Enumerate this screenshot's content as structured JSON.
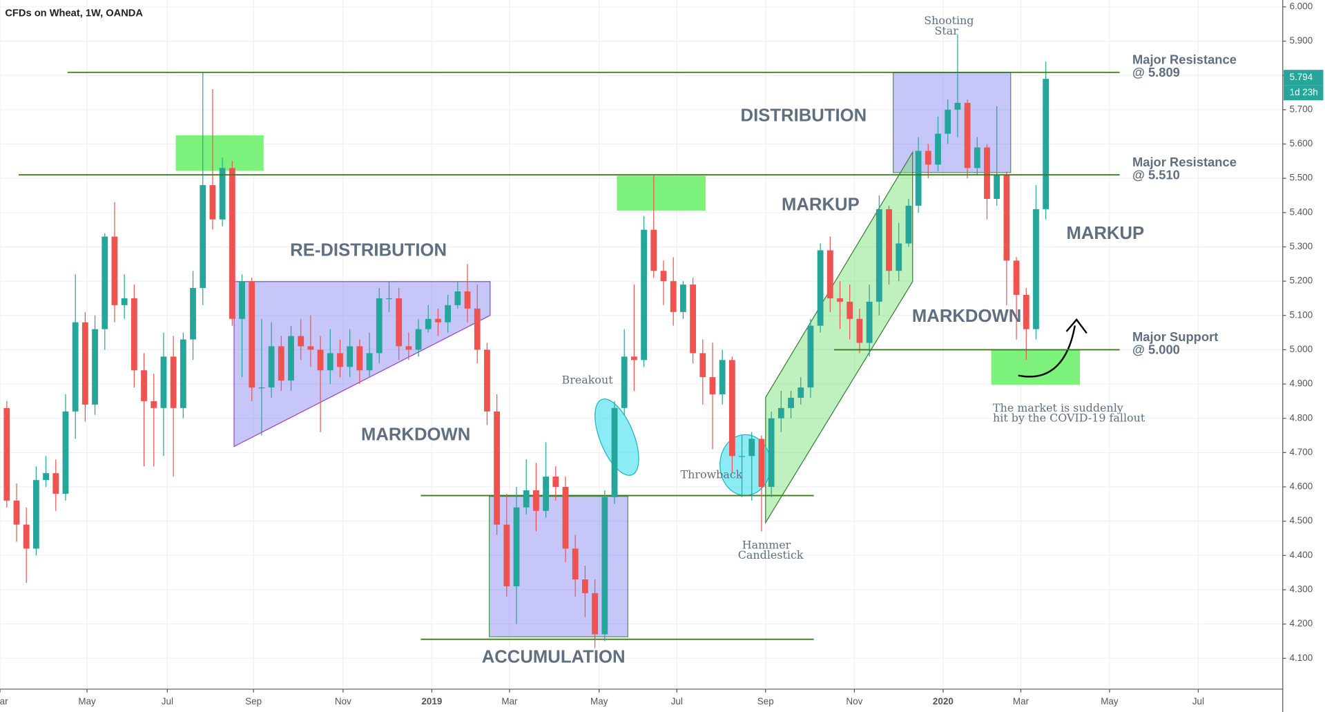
{
  "chart_data": {
    "type": "candlestick",
    "title": "CFDs on Wheat, 1W, OANDA",
    "up_color": "#26a69a",
    "down_color": "#ef5350",
    "grid": true,
    "ylim": [
      4.01,
      6.02
    ],
    "yticks": [
      {
        "value": 4.1,
        "label": "4.100"
      },
      {
        "value": 4.2,
        "label": "4.200"
      },
      {
        "value": 4.3,
        "label": "4.300"
      },
      {
        "value": 4.4,
        "label": "4.400"
      },
      {
        "value": 4.5,
        "label": "4.500"
      },
      {
        "value": 4.6,
        "label": "4.600"
      },
      {
        "value": 4.7,
        "label": "4.700"
      },
      {
        "value": 4.8,
        "label": "4.800"
      },
      {
        "value": 4.9,
        "label": "4.900"
      },
      {
        "value": 5.0,
        "label": "5.000"
      },
      {
        "value": 5.1,
        "label": "5.100"
      },
      {
        "value": 5.2,
        "label": "5.200"
      },
      {
        "value": 5.3,
        "label": "5.300"
      },
      {
        "value": 5.4,
        "label": "5.400"
      },
      {
        "value": 5.5,
        "label": "5.500"
      },
      {
        "value": 5.6,
        "label": "5.600"
      },
      {
        "value": 5.7,
        "label": "5.700"
      },
      {
        "value": 5.8,
        "label": "5.800"
      },
      {
        "value": 5.9,
        "label": "5.900"
      },
      {
        "value": 6.0,
        "label": "6.000"
      }
    ],
    "xlim": [
      -0.69,
      130.17
    ],
    "xticks": [
      {
        "value": -0.69,
        "label": "Mar"
      },
      {
        "value": 8.19,
        "label": "May"
      },
      {
        "value": 16.38,
        "label": "Jul"
      },
      {
        "value": 25.17,
        "label": "Sep"
      },
      {
        "value": 34.31,
        "label": "Nov"
      },
      {
        "value": 43.36,
        "label": "2019"
      },
      {
        "value": 51.29,
        "label": "Mar"
      },
      {
        "value": 60.43,
        "label": "May"
      },
      {
        "value": 68.36,
        "label": "Jul"
      },
      {
        "value": 77.41,
        "label": "Sep"
      },
      {
        "value": 86.47,
        "label": "Nov"
      },
      {
        "value": 95.52,
        "label": "2020"
      },
      {
        "value": 103.45,
        "label": "Mar"
      },
      {
        "value": 112.5,
        "label": "May"
      },
      {
        "value": 121.55,
        "label": "Jul"
      }
    ],
    "x": [
      0,
      1,
      2,
      3,
      4,
      5,
      6,
      7,
      8,
      9,
      10,
      11,
      12,
      13,
      14,
      15,
      16,
      17,
      18,
      19,
      20,
      21,
      22,
      23,
      24,
      25,
      26,
      27,
      28,
      29,
      30,
      31,
      32,
      33,
      34,
      35,
      36,
      37,
      38,
      39,
      40,
      41,
      42,
      43,
      44,
      45,
      46,
      47,
      48,
      49,
      50,
      51,
      52,
      53,
      54,
      55,
      56,
      57,
      58,
      59,
      60,
      61,
      62,
      63,
      64,
      65,
      66,
      67,
      68,
      69,
      70,
      71,
      72,
      73,
      74,
      75,
      76,
      77,
      78,
      79,
      80,
      81,
      82,
      83,
      84,
      85,
      86,
      87,
      88,
      89,
      90,
      91,
      92,
      93,
      94,
      95,
      96,
      97,
      98,
      99,
      100,
      101,
      102,
      103,
      104,
      105,
      106
    ],
    "open": [
      4.83,
      4.56,
      4.49,
      4.42,
      4.62,
      4.64,
      4.58,
      4.82,
      5.08,
      4.84,
      5.06,
      5.33,
      5.13,
      5.15,
      4.94,
      4.85,
      4.83,
      4.98,
      4.83,
      5.03,
      5.18,
      5.48,
      5.38,
      5.53,
      5.09,
      5.2,
      4.89,
      4.89,
      5.01,
      4.91,
      5.04,
      5.01,
      5.0,
      4.94,
      4.99,
      4.95,
      5.01,
      4.94,
      4.99,
      5.15,
      5.15,
      5.01,
      5.0,
      5.06,
      5.09,
      5.08,
      5.13,
      5.17,
      5.12,
      5.0,
      4.82,
      4.49,
      4.31,
      4.54,
      4.59,
      4.53,
      4.63,
      4.6,
      4.42,
      4.33,
      4.29,
      4.17,
      4.57,
      4.83,
      4.98,
      4.97,
      5.35,
      5.23,
      5.2,
      5.11,
      5.19,
      4.99,
      4.92,
      4.87,
      4.97,
      4.69,
      4.69,
      4.74,
      4.6,
      4.8,
      4.83,
      4.86,
      4.89,
      5.07,
      5.29,
      5.15,
      5.14,
      5.09,
      5.02,
      5.14,
      5.41,
      5.23,
      5.31,
      5.42,
      5.58,
      5.54,
      5.63,
      5.7,
      5.72,
      5.53,
      5.59,
      5.44,
      5.51,
      5.26,
      5.16,
      5.06,
      5.41
    ],
    "high": [
      4.85,
      4.61,
      4.54,
      4.66,
      4.69,
      4.68,
      4.87,
      5.22,
      5.11,
      5.1,
      5.34,
      5.43,
      5.22,
      5.19,
      4.99,
      4.93,
      5.05,
      5.04,
      5.05,
      5.23,
      5.81,
      5.76,
      5.56,
      5.55,
      5.22,
      5.21,
      5.09,
      5.08,
      5.04,
      5.07,
      5.09,
      5.1,
      5.04,
      5.06,
      5.03,
      5.06,
      5.03,
      5.05,
      5.18,
      5.2,
      5.18,
      5.05,
      5.09,
      5.13,
      5.12,
      5.16,
      5.2,
      5.25,
      5.19,
      5.02,
      4.87,
      4.58,
      4.6,
      4.68,
      4.67,
      4.73,
      4.66,
      4.63,
      4.46,
      4.37,
      4.33,
      4.59,
      4.85,
      5.06,
      5.19,
      5.39,
      5.51,
      5.26,
      5.27,
      5.2,
      5.21,
      5.03,
      5.02,
      5.0,
      4.98,
      4.75,
      4.76,
      4.75,
      4.82,
      4.88,
      4.88,
      4.92,
      5.09,
      5.31,
      5.33,
      5.2,
      5.19,
      5.12,
      5.19,
      5.45,
      5.42,
      5.37,
      5.44,
      5.62,
      5.6,
      5.68,
      5.73,
      5.92,
      5.73,
      5.62,
      5.6,
      5.71,
      5.52,
      5.27,
      5.18,
      5.48,
      5.84
    ],
    "low": [
      4.54,
      4.44,
      4.32,
      4.4,
      4.6,
      4.53,
      4.56,
      4.74,
      4.79,
      4.81,
      5.0,
      5.08,
      5.09,
      4.89,
      4.66,
      4.66,
      4.69,
      4.63,
      4.8,
      4.97,
      5.13,
      5.35,
      5.36,
      5.07,
      4.92,
      4.85,
      4.75,
      4.86,
      4.88,
      4.88,
      4.97,
      4.95,
      4.76,
      4.9,
      4.92,
      4.92,
      4.9,
      4.92,
      4.96,
      5.11,
      4.97,
      4.97,
      4.98,
      5.05,
      5.04,
      5.05,
      5.12,
      5.08,
      4.96,
      4.78,
      4.46,
      4.28,
      4.2,
      4.52,
      4.47,
      4.51,
      4.56,
      4.38,
      4.28,
      4.22,
      4.13,
      4.15,
      4.55,
      4.81,
      4.88,
      4.95,
      5.21,
      5.13,
      5.07,
      5.09,
      4.96,
      4.84,
      4.71,
      4.84,
      4.64,
      4.57,
      4.56,
      4.47,
      4.57,
      4.76,
      4.8,
      4.84,
      4.86,
      5.05,
      5.11,
      5.06,
      5.03,
      4.99,
      4.98,
      5.1,
      5.19,
      5.2,
      5.3,
      5.4,
      5.5,
      5.52,
      5.6,
      5.62,
      5.5,
      5.51,
      5.38,
      5.42,
      5.13,
      5.03,
      4.97,
      5.03,
      5.38
    ],
    "close": [
      4.56,
      4.49,
      4.42,
      4.62,
      4.64,
      4.58,
      4.82,
      5.08,
      4.84,
      5.06,
      5.33,
      5.13,
      5.15,
      4.94,
      4.85,
      4.83,
      4.98,
      4.83,
      5.03,
      5.18,
      5.48,
      5.38,
      5.53,
      5.09,
      5.2,
      4.89,
      4.89,
      5.01,
      4.91,
      5.04,
      5.01,
      5.0,
      4.94,
      4.99,
      4.95,
      5.01,
      4.94,
      4.99,
      5.15,
      5.15,
      5.01,
      5.0,
      5.06,
      5.09,
      5.08,
      5.13,
      5.17,
      5.12,
      5.0,
      4.82,
      4.49,
      4.31,
      4.54,
      4.59,
      4.53,
      4.63,
      4.6,
      4.42,
      4.33,
      4.29,
      4.17,
      4.57,
      4.83,
      4.98,
      4.97,
      5.35,
      5.23,
      5.2,
      5.11,
      5.19,
      4.99,
      4.92,
      4.87,
      4.97,
      4.69,
      4.69,
      4.74,
      4.6,
      4.8,
      4.83,
      4.86,
      4.89,
      5.07,
      5.29,
      5.15,
      5.14,
      5.09,
      5.02,
      5.14,
      5.41,
      5.23,
      5.31,
      5.42,
      5.58,
      5.54,
      5.63,
      5.7,
      5.72,
      5.53,
      5.59,
      5.44,
      5.51,
      5.26,
      5.16,
      5.06,
      5.41,
      5.79
    ],
    "last_price": 5.794,
    "countdown": "1d 23h",
    "levels": [
      {
        "name": "Major Resistance",
        "value": 5.809,
        "label": "@ 5.809"
      },
      {
        "name": "Major Resistance",
        "value": 5.51,
        "label": "@ 5.510"
      },
      {
        "name": "Major Support",
        "value": 5.0,
        "label": "@ 5.000"
      }
    ],
    "annotations": [
      [
        "RE-DISTRIBUTION"
      ],
      [
        "MARKDOWN"
      ],
      [
        "ACCUMULATION"
      ],
      [
        "DISTRIBUTION"
      ],
      [
        "MARKUP"
      ],
      [
        "MARKDOWN"
      ],
      [
        "MARKUP"
      ],
      [
        "Breakout"
      ],
      [
        "Throwback"
      ],
      [
        "Hammer",
        "Candlestick"
      ],
      [
        "Shooting",
        "Star"
      ],
      [
        "The market is suddenly",
        "hit by the COVID-19 fallout"
      ]
    ]
  }
}
